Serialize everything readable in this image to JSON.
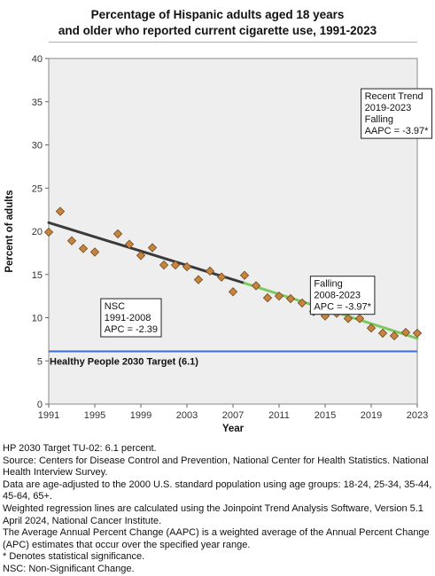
{
  "title_lines": [
    "Percentage of Hispanic adults aged 18 years",
    "and older who reported current cigarette use, 1991-2023"
  ],
  "chart_data": {
    "type": "scatter",
    "title": "Percentage of Hispanic adults aged 18 years and older who reported current cigarette use, 1991-2023",
    "xlabel": "Year",
    "ylabel": "Percent of adults",
    "xlim": [
      1991,
      2023
    ],
    "ylim": [
      0,
      40
    ],
    "x_ticks": [
      1991,
      1995,
      1999,
      2003,
      2007,
      2011,
      2015,
      2019,
      2023
    ],
    "y_ticks": [
      0,
      5,
      10,
      15,
      20,
      25,
      30,
      35,
      40
    ],
    "grid": false,
    "points": [
      {
        "x": 1991,
        "y": 19.9
      },
      {
        "x": 1992,
        "y": 22.3
      },
      {
        "x": 1993,
        "y": 18.9
      },
      {
        "x": 1994,
        "y": 18.0
      },
      {
        "x": 1995,
        "y": 17.6
      },
      {
        "x": 1997,
        "y": 19.7
      },
      {
        "x": 1998,
        "y": 18.5
      },
      {
        "x": 1999,
        "y": 17.2
      },
      {
        "x": 2000,
        "y": 18.1
      },
      {
        "x": 2001,
        "y": 16.1
      },
      {
        "x": 2002,
        "y": 16.1
      },
      {
        "x": 2003,
        "y": 15.9
      },
      {
        "x": 2004,
        "y": 14.4
      },
      {
        "x": 2005,
        "y": 15.4
      },
      {
        "x": 2006,
        "y": 14.7
      },
      {
        "x": 2007,
        "y": 13.0
      },
      {
        "x": 2008,
        "y": 14.9
      },
      {
        "x": 2009,
        "y": 13.7
      },
      {
        "x": 2010,
        "y": 12.3
      },
      {
        "x": 2011,
        "y": 12.5
      },
      {
        "x": 2012,
        "y": 12.2
      },
      {
        "x": 2013,
        "y": 11.7
      },
      {
        "x": 2014,
        "y": 10.7
      },
      {
        "x": 2015,
        "y": 10.2
      },
      {
        "x": 2016,
        "y": 10.5
      },
      {
        "x": 2017,
        "y": 9.9
      },
      {
        "x": 2018,
        "y": 9.9
      },
      {
        "x": 2019,
        "y": 8.8
      },
      {
        "x": 2020,
        "y": 8.2
      },
      {
        "x": 2021,
        "y": 7.9
      },
      {
        "x": 2022,
        "y": 8.3
      },
      {
        "x": 2023,
        "y": 8.2
      }
    ],
    "trend_segments": [
      {
        "from": [
          1991,
          21.0
        ],
        "to": [
          2008,
          14.0
        ],
        "color": "#3a3a3a"
      },
      {
        "from": [
          2008,
          14.0
        ],
        "to": [
          2023,
          7.6
        ],
        "color": "#7bc95a"
      }
    ],
    "target": {
      "value": 6.1,
      "label": "Healthy People 2030 Target (6.1)",
      "color": "#3b6fd6"
    },
    "marker_color": "#c8843c",
    "annotations": [
      {
        "lines": [
          "Recent Trend",
          "2019-2023",
          "Falling",
          "AAPC = -3.97*"
        ],
        "x": 2021.2,
        "y": 36.5
      },
      {
        "lines": [
          "Falling",
          "2008-2023",
          "APC = -3.97*"
        ],
        "x": 2016.8,
        "y": 14.8
      },
      {
        "lines": [
          "NSC",
          "1991-2008",
          "APC = -2.39"
        ],
        "x": 1998.6,
        "y": 12.2
      }
    ]
  },
  "notes": [
    "HP 2030 Target TU-02: 6.1 percent.",
    "Source: Centers for Disease Control and Prevention, National Center for Health Statistics. National Health Interview Survey.",
    "Data are age-adjusted to the 2000 U.S. standard population using age groups: 18-24, 25-34, 35-44, 45-64, 65+.",
    "Weighted regression lines are calculated using the Joinpoint Trend Analysis Software, Version 5.1 April 2024, National Cancer Institute.",
    "The Average Annual Percent Change (AAPC) is a weighted average of the Annual Percent Change (APC) estimates that occur over the specified year range.",
    "* Denotes statistical significance.",
    "NSC: Non-Significant Change."
  ]
}
